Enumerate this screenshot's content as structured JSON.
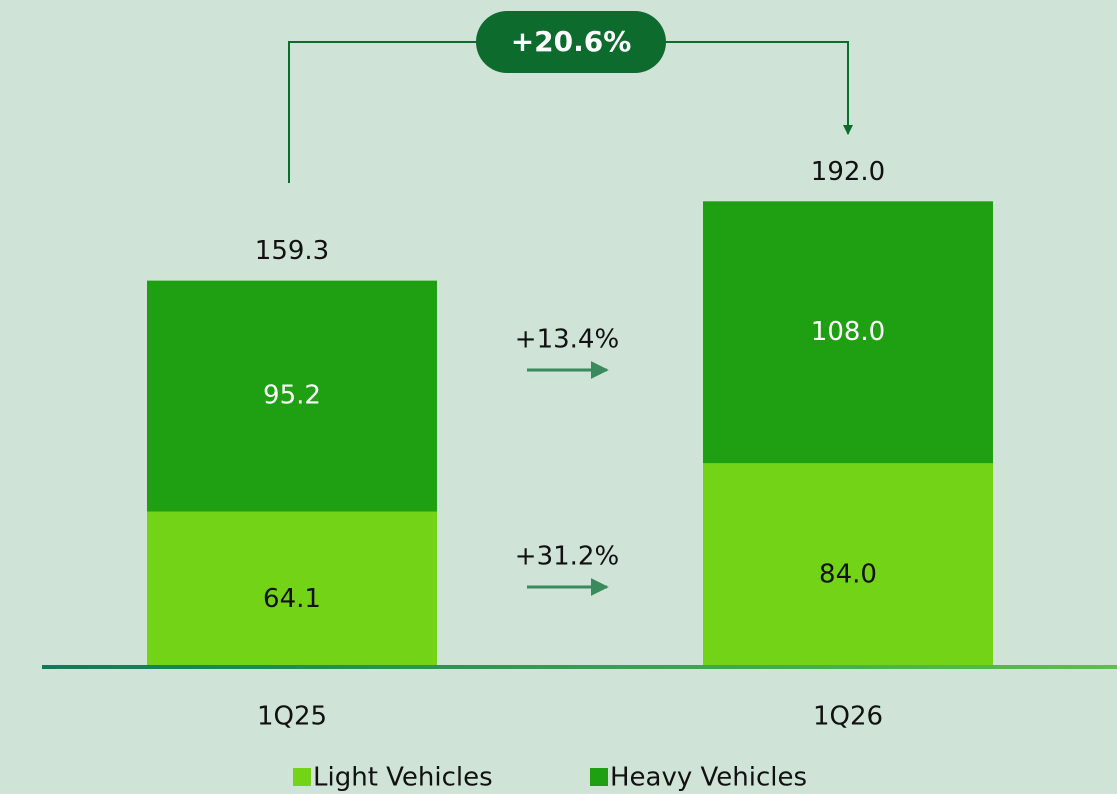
{
  "chart_data": {
    "type": "stacked_bar",
    "categories": [
      "1Q25",
      "1Q26"
    ],
    "series": [
      {
        "name": "Light Vehicles",
        "color": "#72d317",
        "values": [
          64.1,
          84.0
        ],
        "value_labels": [
          "64.1",
          "84.0"
        ],
        "label_color": "#111111"
      },
      {
        "name": "Heavy Vehicles",
        "color": "#1fa012",
        "values": [
          95.2,
          108.0
        ],
        "value_labels": [
          "95.2",
          "108.0"
        ],
        "label_color": "#ffffff"
      }
    ],
    "totals": [
      159.3,
      192.0
    ],
    "total_labels": [
      "159.3",
      "192.0"
    ],
    "annotations": [
      "+20.6%",
      "+13.4%",
      "+31.2%"
    ],
    "ylim": [
      0,
      275
    ],
    "legend": "bottom"
  }
}
